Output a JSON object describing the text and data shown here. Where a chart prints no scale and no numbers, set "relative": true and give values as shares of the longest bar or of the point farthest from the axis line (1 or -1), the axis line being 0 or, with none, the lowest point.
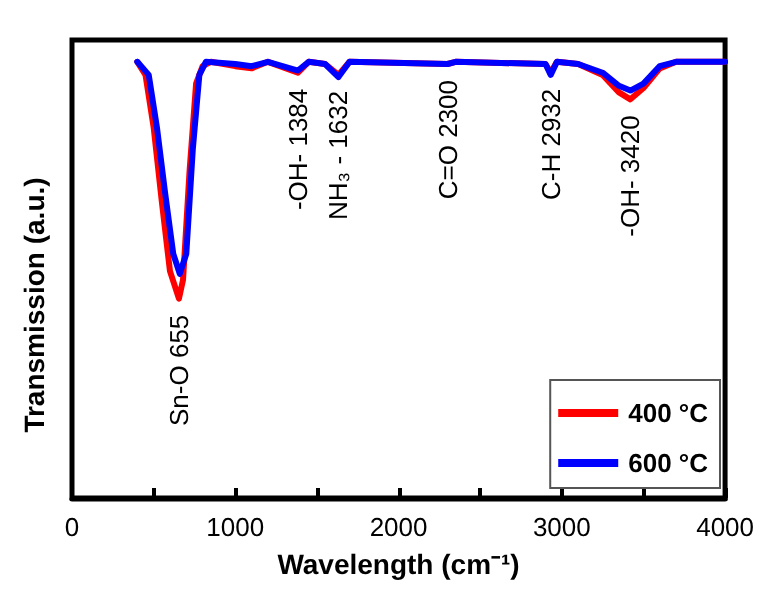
{
  "chart_data": {
    "type": "line",
    "relative": true,
    "xlabel": "Wavelength (cm⁻¹)",
    "ylabel": "Transmission (a.u.)",
    "xlim": [
      0,
      4000
    ],
    "xticks": [
      0,
      {
        "value": 500,
        "label": null
      },
      1000,
      {
        "value": 1500,
        "label": null
      },
      2000,
      {
        "value": 2500,
        "label": null
      },
      3000,
      {
        "value": 3500,
        "label": null
      },
      4000
    ],
    "grid": false,
    "legend": "bottom right",
    "marker": "none",
    "line_style": "solid",
    "series": [
      {
        "name": "400 °C",
        "color": "#ff0000",
        "x": [
          400,
          450,
          500,
          550,
          600,
          655,
          680,
          720,
          760,
          800,
          850,
          1000,
          1100,
          1200,
          1384,
          1450,
          1550,
          1632,
          1700,
          2300,
          2350,
          2900,
          2932,
          2970,
          3100,
          3250,
          3350,
          3420,
          3500,
          3600,
          3700,
          4000
        ],
        "values": [
          1,
          0.97,
          0.85,
          0.68,
          0.52,
          0.457,
          0.5,
          0.75,
          0.95,
          0.99,
          1,
          0.99,
          0.985,
          1,
          0.975,
          1,
          0.995,
          0.97,
          1,
          0.995,
          1,
          0.995,
          0.975,
          1,
          0.995,
          0.97,
          0.93,
          0.914,
          0.94,
          0.985,
          1,
          1
        ]
      },
      {
        "name": "600 °C",
        "color": "#0000ff",
        "x": [
          400,
          470,
          520,
          570,
          620,
          660,
          700,
          740,
          780,
          820,
          1000,
          1100,
          1200,
          1384,
          1450,
          1550,
          1632,
          1700,
          2300,
          2350,
          2900,
          2932,
          2970,
          3100,
          3250,
          3350,
          3420,
          3500,
          3600,
          3700,
          4000
        ],
        "values": [
          1,
          0.97,
          0.85,
          0.7,
          0.56,
          0.514,
          0.56,
          0.8,
          0.97,
          1,
          0.995,
          0.99,
          1,
          0.98,
          1,
          0.995,
          0.965,
          1,
          0.995,
          1,
          0.995,
          0.97,
          1,
          0.995,
          0.975,
          0.945,
          0.934,
          0.95,
          0.99,
          1,
          1
        ]
      }
    ],
    "annotations": [
      {
        "text": "Sn-O 655",
        "x": 655,
        "y": 0.457
      },
      {
        "text": "-OH- 1384",
        "x": 1384,
        "y": 0.975
      },
      {
        "text": "NH₃ - 1632",
        "x": 1632,
        "y": 0.97
      },
      {
        "text": "C=O 2300",
        "x": 2300,
        "y": 0.995
      },
      {
        "text": "C-H 2932",
        "x": 2932,
        "y": 0.975
      },
      {
        "text": "-OH- 3420",
        "x": 3420,
        "y": 0.914
      }
    ]
  }
}
